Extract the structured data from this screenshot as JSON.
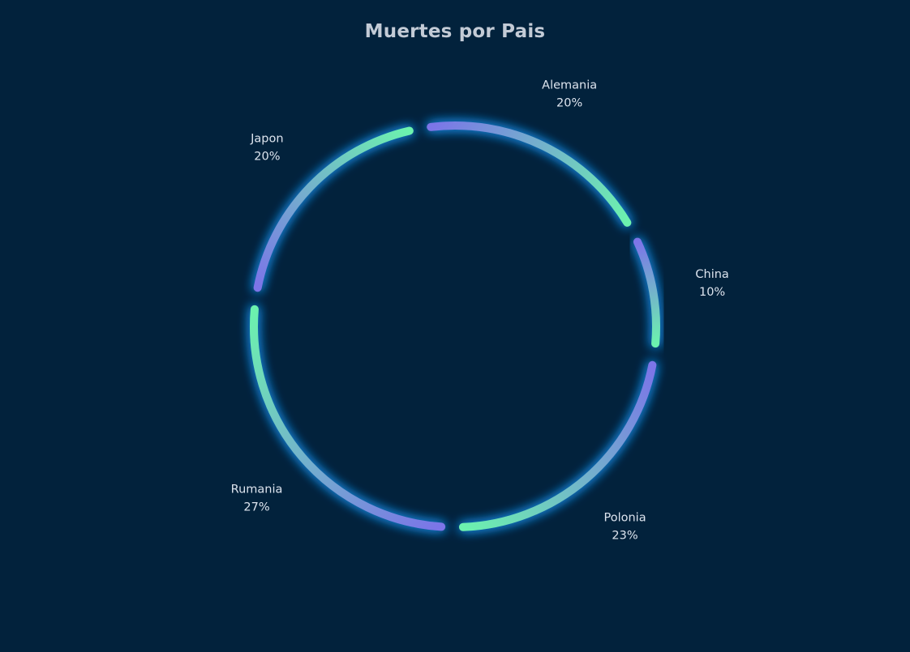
{
  "chart_data": {
    "type": "pie",
    "title": "Muertes por Pais",
    "categories": [
      "Polonia",
      "Rumania",
      "Japon",
      "Alemania",
      "China"
    ],
    "values": [
      23,
      27,
      20,
      20,
      10
    ],
    "labels_percent": [
      "23%",
      "27%",
      "20%",
      "20%",
      "10%"
    ],
    "donut": true,
    "legend": "none",
    "colors": {
      "background": "#02223c",
      "gradient_start": "#7b74e8",
      "gradient_end": "#6cf2ae",
      "glow": "#1e9bff",
      "label_text": "#dde4ee",
      "title_text": "#c3cbd6"
    }
  }
}
